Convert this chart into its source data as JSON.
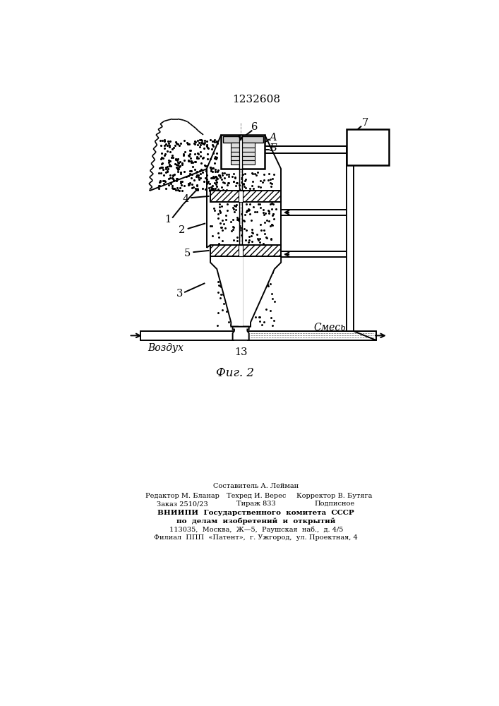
{
  "title": "1232608",
  "fig_label": "Фиг. 2",
  "label_1": "1",
  "label_2": "2",
  "label_3": "3",
  "label_4": "4",
  "label_5": "5",
  "label_6": "6",
  "label_7": "7",
  "label_A": "A",
  "label_B": "Б",
  "label_13": "13",
  "label_vozduh": "Воздух",
  "label_smes": "Смесь",
  "footer_line1": "Составитель А. Лейман",
  "footer_line2_left": "Редактор М. Бланар",
  "footer_line2_mid": "Техред И. Верес",
  "footer_line2_right": "Корректор В. Бутяга",
  "footer_line3_left": "Заказ 2510/23",
  "footer_line3_mid": "Тираж 833",
  "footer_line3_right": "Подписное",
  "footer_line4": "ВНИИПИ  Государственного  комитета  СССР",
  "footer_line5": "по  делам  изобретений  и  открытий",
  "footer_line6": "113035,  Москва,  Ж—5,  Раушская  наб.,  д. 4/5",
  "footer_line7": "Филиал  ППП  «Патент»,  г. Ужгород,  ул. Проектная, 4"
}
